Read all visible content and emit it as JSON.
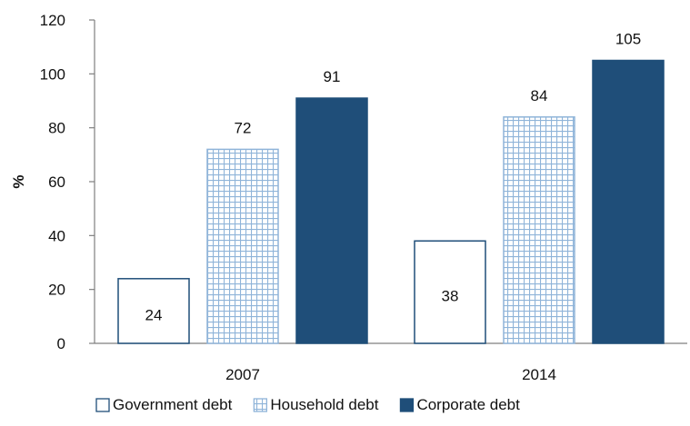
{
  "chart_data": {
    "type": "bar",
    "categories": [
      "2007",
      "2014"
    ],
    "series": [
      {
        "name": "Government debt",
        "values": [
          24,
          38
        ],
        "style": "outline",
        "color": "#1f4e79"
      },
      {
        "name": "Household debt",
        "values": [
          72,
          84
        ],
        "style": "grid-pattern",
        "color": "#8fb4d9"
      },
      {
        "name": "Corporate debt",
        "values": [
          91,
          105
        ],
        "style": "solid",
        "color": "#1f4e79"
      }
    ],
    "ylabel": "%",
    "ylim": [
      0,
      120
    ],
    "yticks": [
      "0",
      "20",
      "40",
      "60",
      "80",
      "100",
      "120"
    ],
    "grid": false,
    "legend": "bottom",
    "data_labels": true
  }
}
